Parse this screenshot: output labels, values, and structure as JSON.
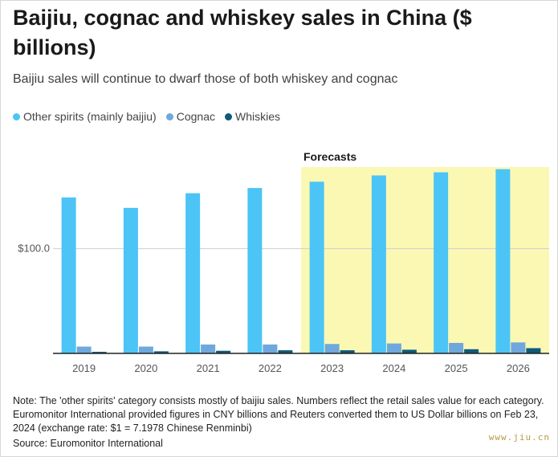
{
  "title": "Baijiu, cognac and whiskey sales in China ($ billions)",
  "subtitle": "Baijiu sales will continue to dwarf those of both whiskey and cognac",
  "watermark": "www.jiu.cn",
  "note": "Note: The 'other spirits' category consists mostly of baijiu sales. Numbers reflect the retail sales value for each category. Euromonitor International provided figures in CNY billions and Reuters converted them to US Dollar billions on Feb 23, 2024 (exchange rate: $1 = 7.1978 Chinese Renminbi)",
  "source": "Source: Euromonitor International",
  "chart_data": {
    "type": "bar",
    "categories": [
      "2019",
      "2020",
      "2021",
      "2022",
      "2023",
      "2024",
      "2025",
      "2026"
    ],
    "series": [
      {
        "name": "Other spirits (mainly baijiu)",
        "color": "#4cc4f5",
        "values": [
          149,
          139,
          153,
          158,
          164,
          170,
          173,
          176
        ]
      },
      {
        "name": "Cognac",
        "color": "#6fa8dc",
        "values": [
          6.5,
          6.5,
          8.5,
          8.5,
          9,
          9.5,
          10,
          10.5
        ]
      },
      {
        "name": "Whiskies",
        "color": "#0f5a7a",
        "values": [
          1.5,
          2,
          2.5,
          3,
          3,
          3.5,
          4,
          5
        ]
      }
    ],
    "forecast": {
      "label": "Forecasts",
      "categories": [
        "2023",
        "2024",
        "2025",
        "2026"
      ],
      "color": "#fbf8b4"
    },
    "y_ticks": [
      {
        "value": 100,
        "label": "$100.0"
      }
    ],
    "ylim": [
      0,
      178
    ],
    "legend": "top-left",
    "grid": true
  }
}
